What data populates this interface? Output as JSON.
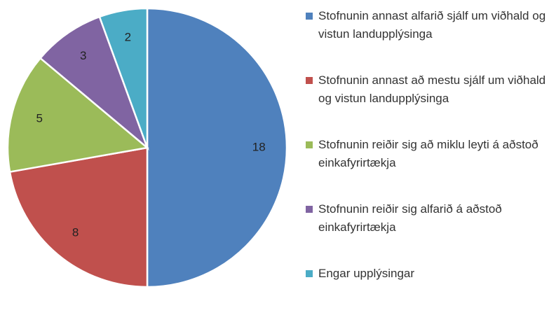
{
  "chart_data": {
    "type": "pie",
    "categories": [
      "Stofnunin annast alfarið  sjálf um viðhald og vistun landupplýsinga",
      "Stofnunin annast að mestu sjálf um viðhald og vistun landupplýsinga",
      "Stofnunin reiðir sig að miklu leyti á aðstoð einkafyrirtækja",
      "Stofnunin reiðir sig alfarið á aðstoð einkafyrirtækja",
      "Engar upplýsingar"
    ],
    "values": [
      18,
      8,
      5,
      3,
      2
    ],
    "colors": [
      "#4f81bd",
      "#c0504d",
      "#9bbb59",
      "#8064a2",
      "#4bacc6"
    ]
  }
}
